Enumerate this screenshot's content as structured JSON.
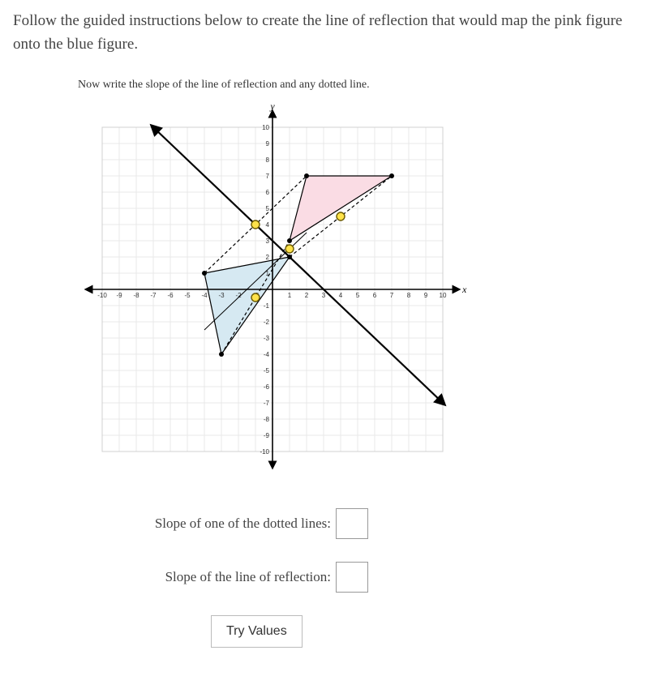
{
  "intro": "Follow the guided instructions below to create the line of reflection that would map the pink figure onto the blue figure.",
  "step_text": "Now write the slope of the line of reflection and any dotted line.",
  "prompt1": "Slope of one of the dotted lines:",
  "prompt2": "Slope of the line of reflection:",
  "try_label": "Try Values",
  "axis": {
    "x_label": "x",
    "y_label": "y"
  },
  "chart": {
    "xlim": [
      -10,
      10
    ],
    "ylim": [
      -10,
      10
    ],
    "tick_step": 1,
    "label_fontsize": 8,
    "grid_color": "#e8e8e8",
    "inner_grid_bound": 10,
    "axis_color": "#000000",
    "background": "#ffffff",
    "pink_triangle": {
      "points": [
        [
          1,
          3
        ],
        [
          2,
          7
        ],
        [
          7,
          7
        ]
      ],
      "fill": "#fadce4",
      "stroke": "#000000"
    },
    "blue_triangle": {
      "points": [
        [
          -3,
          -4
        ],
        [
          -4,
          1
        ],
        [
          1,
          2
        ]
      ],
      "fill": "#d6e9f2",
      "stroke": "#000000"
    },
    "vertex_dot_color": "#000000",
    "vertex_dot_radius": 3,
    "dotted_lines": [
      {
        "from": [
          -3,
          -4
        ],
        "to": [
          1,
          3
        ]
      },
      {
        "from": [
          -4,
          1
        ],
        "to": [
          2,
          7
        ]
      },
      {
        "from": [
          1,
          2
        ],
        "to": [
          7,
          7
        ]
      }
    ],
    "dotted_style": {
      "color": "#000000",
      "dash": "4,3",
      "width": 1.2
    },
    "midpoints": [
      [
        -1,
        -0.5
      ],
      [
        -1,
        4
      ],
      [
        4,
        4.5
      ],
      [
        1,
        2.5
      ]
    ],
    "midpoint_style": {
      "fill": "#ffe24a",
      "stroke": "#6b5a00",
      "radius": 5
    },
    "reflection_line": {
      "from": [
        -7,
        10
      ],
      "to": [
        10,
        -7
      ],
      "color": "#000000",
      "width": 2.2
    },
    "perp_line": {
      "from": [
        -4,
        -2.5
      ],
      "to": [
        2,
        3.5
      ],
      "color": "#000000",
      "width": 1
    }
  }
}
